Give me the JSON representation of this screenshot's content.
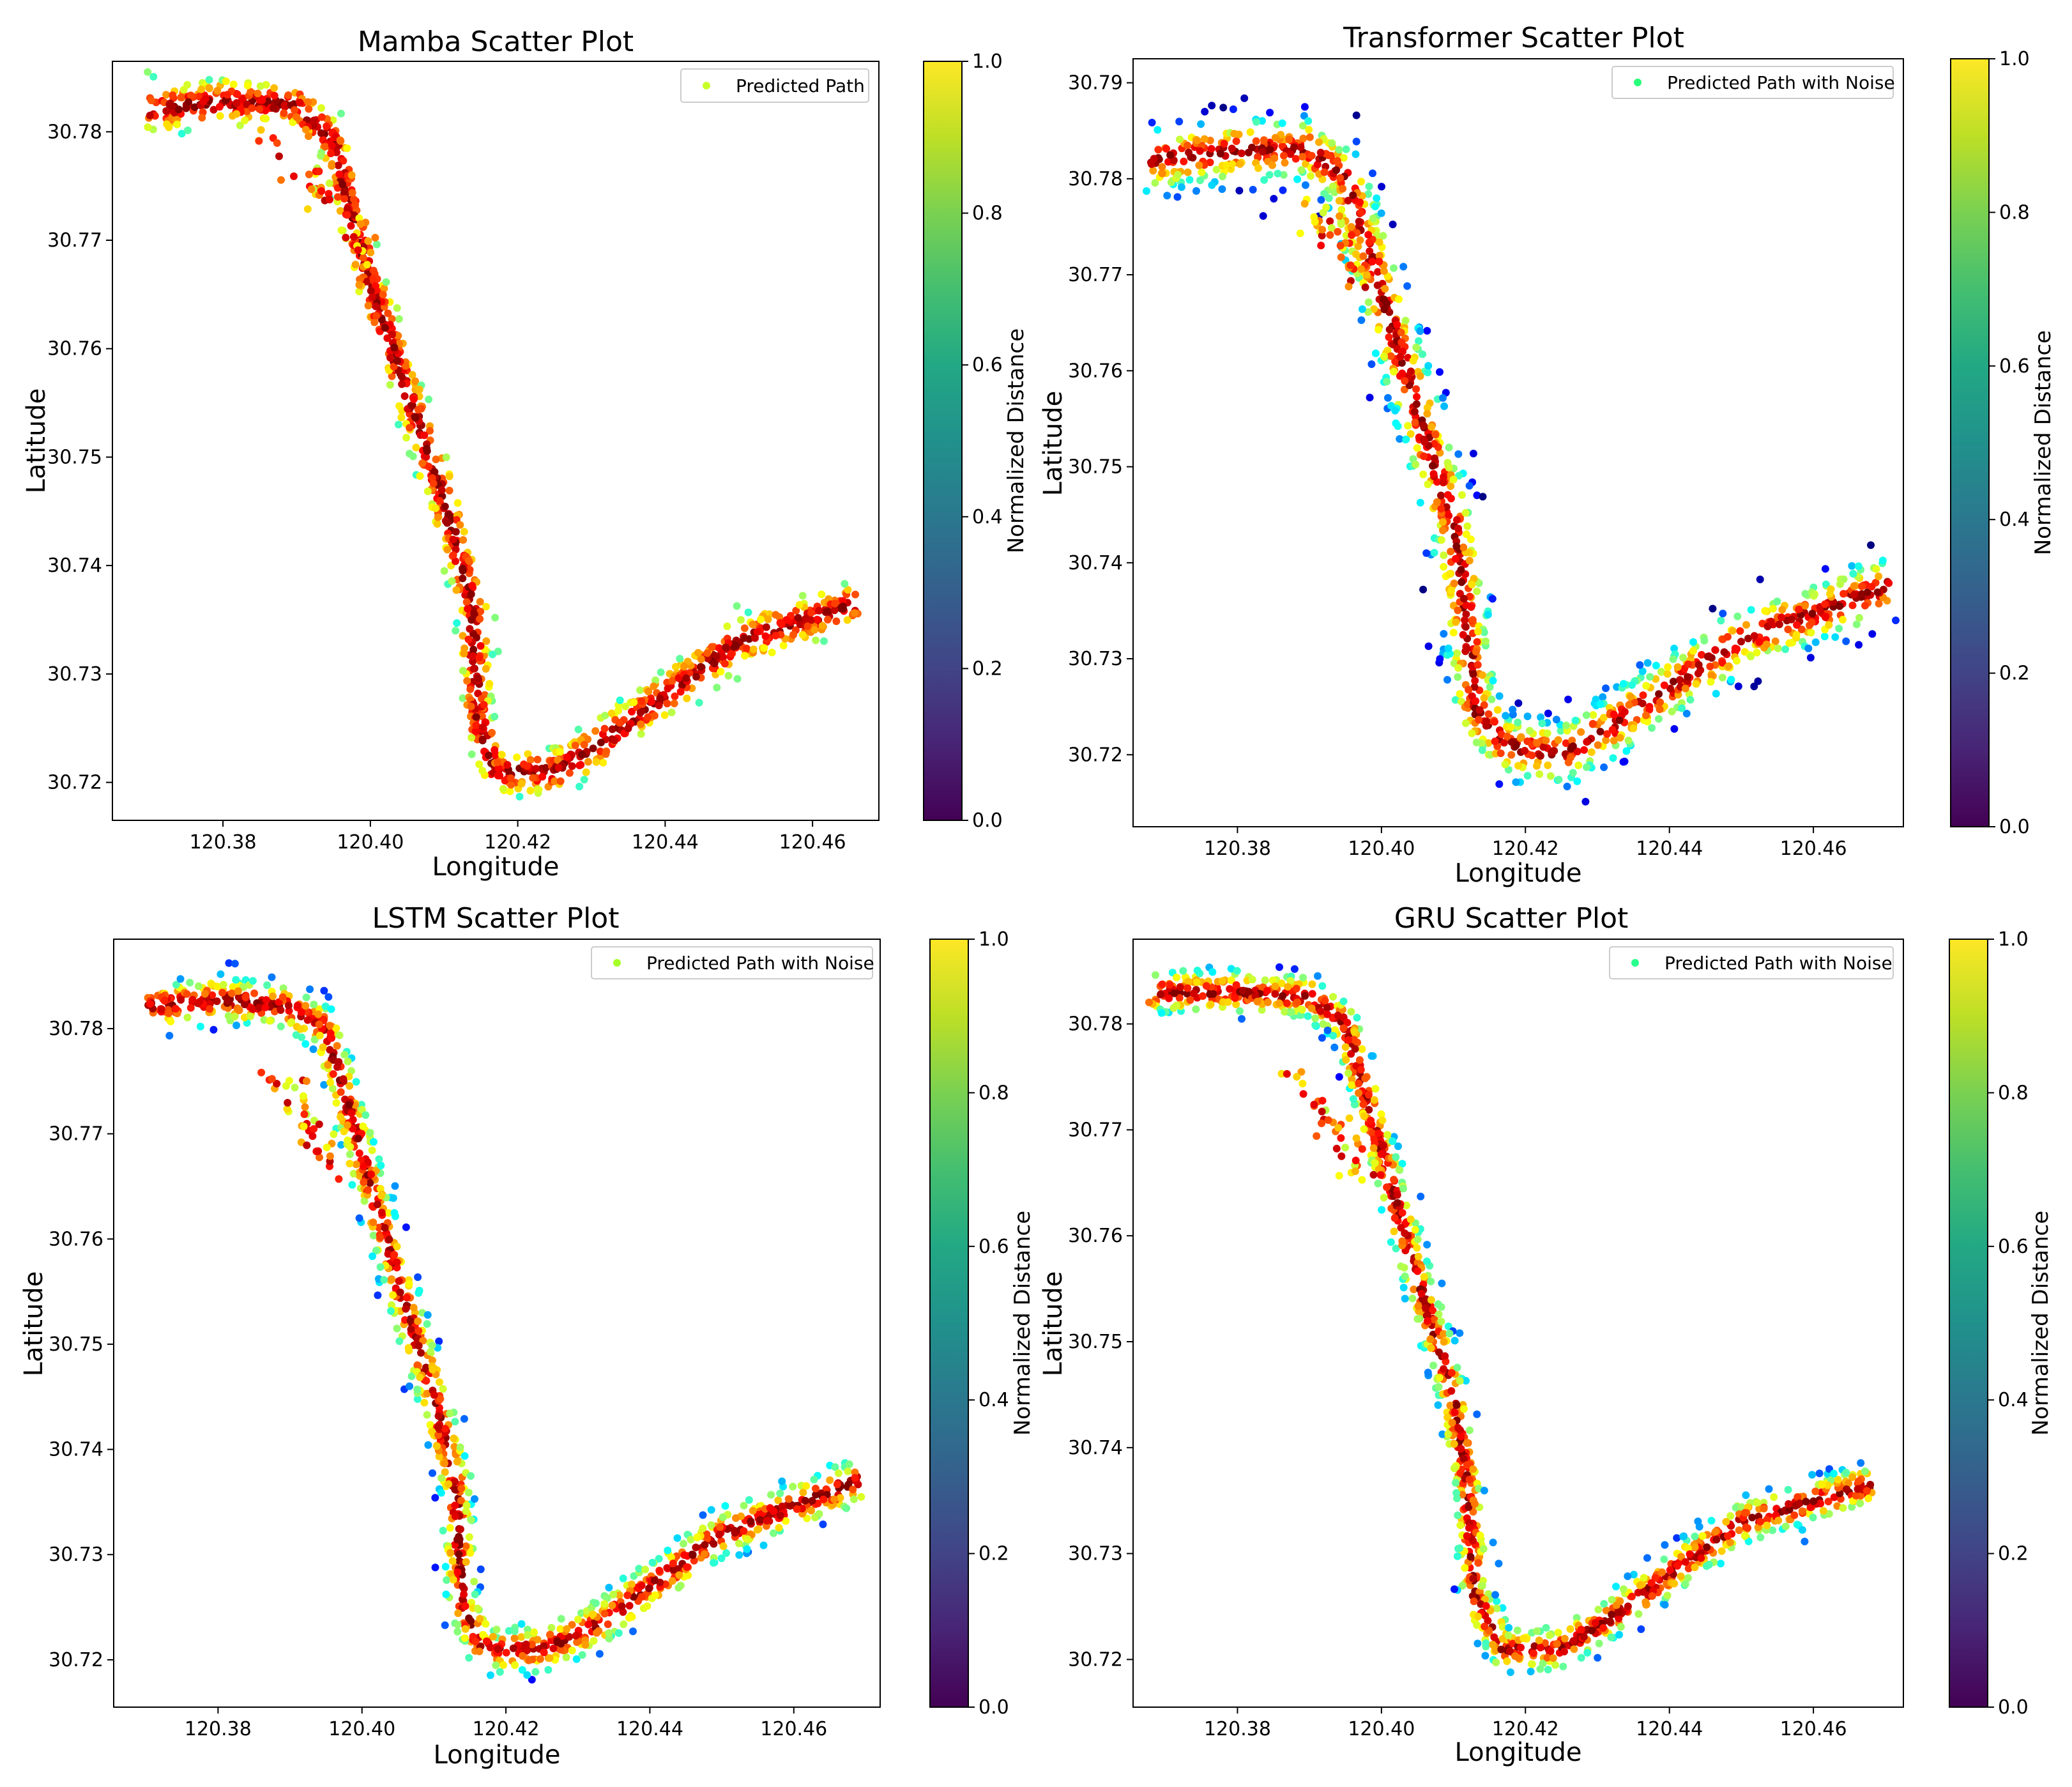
{
  "colorbar": {
    "label": "Normalized Distance",
    "ticks": [
      "0.0",
      "0.2",
      "0.4",
      "0.6",
      "0.8",
      "1.0"
    ],
    "colormap": "viridis"
  },
  "chart_data": [
    {
      "type": "scatter",
      "title": "Mamba Scatter Plot",
      "xlabel": "Longitude",
      "ylabel": "Latitude",
      "legend": "Predicted Path",
      "legend_position": "top-right",
      "legend_color": "#c8ff29",
      "xlim": [
        120.365,
        120.469
      ],
      "ylim": [
        30.7165,
        30.7865
      ],
      "xticks": [
        "120.38",
        "120.40",
        "120.42",
        "120.44",
        "120.46"
      ],
      "yticks": [
        "30.72",
        "30.73",
        "30.74",
        "30.75",
        "30.76",
        "30.77",
        "30.78"
      ],
      "band_width": 0.0022,
      "value_range": [
        0.45,
        1.0
      ],
      "seed": 11,
      "path_lon": [
        120.37,
        120.38,
        120.39,
        120.395,
        120.4,
        120.405,
        120.41,
        120.414,
        120.4145,
        120.417,
        120.425,
        120.432,
        120.44,
        120.45,
        120.466
      ],
      "path_lat": [
        30.782,
        30.7828,
        30.7825,
        30.779,
        30.766,
        30.756,
        30.746,
        30.736,
        30.726,
        30.721,
        30.721,
        30.724,
        30.728,
        30.733,
        30.7365
      ],
      "outliers_lon": [
        120.385,
        120.4
      ],
      "outliers_lat": [
        30.78,
        30.768
      ]
    },
    {
      "type": "scatter",
      "title": "Transformer Scatter Plot",
      "xlabel": "Longitude",
      "ylabel": "Latitude",
      "legend": "Predicted Path with Noise",
      "legend_position": "top-right",
      "legend_color": "#29ff7a",
      "xlim": [
        120.3655,
        120.4725
      ],
      "ylim": [
        30.7125,
        30.7925
      ],
      "xticks": [
        "120.38",
        "120.40",
        "120.42",
        "120.44",
        "120.46"
      ],
      "yticks": [
        "30.72",
        "30.73",
        "30.74",
        "30.75",
        "30.76",
        "30.77",
        "30.78",
        "30.79"
      ],
      "band_width": 0.0042,
      "value_range": [
        0.05,
        1.0
      ],
      "seed": 23,
      "path_lon": [
        120.368,
        120.38,
        120.39,
        120.395,
        120.4,
        120.405,
        120.41,
        120.412,
        120.413,
        120.417,
        120.425,
        120.432,
        120.44,
        120.45,
        120.47
      ],
      "path_lat": [
        30.782,
        30.783,
        30.783,
        30.78,
        30.768,
        30.756,
        30.744,
        30.733,
        30.725,
        30.721,
        30.72,
        30.723,
        30.727,
        30.732,
        30.7375
      ],
      "outliers_lon": [
        120.39,
        120.4
      ],
      "outliers_lat": [
        30.777,
        30.768
      ]
    },
    {
      "type": "scatter",
      "title": "LSTM Scatter Plot",
      "xlabel": "Longitude",
      "ylabel": "Latitude",
      "legend": "Predicted Path with Noise",
      "legend_position": "top-right",
      "legend_color": "#a6ff29",
      "xlim": [
        120.3655,
        120.472
      ],
      "ylim": [
        30.7155,
        30.7885
      ],
      "xticks": [
        "120.38",
        "120.40",
        "120.42",
        "120.44",
        "120.46"
      ],
      "yticks": [
        "30.72",
        "30.73",
        "30.74",
        "30.75",
        "30.76",
        "30.77",
        "30.78"
      ],
      "band_width": 0.0026,
      "value_range": [
        0.2,
        1.0
      ],
      "seed": 37,
      "path_lon": [
        120.37,
        120.38,
        120.39,
        120.395,
        120.4,
        120.405,
        120.41,
        120.413,
        120.414,
        120.417,
        120.425,
        120.432,
        120.44,
        120.45,
        120.469
      ],
      "path_lat": [
        30.782,
        30.7828,
        30.782,
        30.78,
        30.768,
        30.756,
        30.745,
        30.737,
        30.725,
        30.721,
        30.721,
        30.723,
        30.727,
        30.732,
        30.737
      ],
      "outliers_lon": [
        120.388,
        120.398
      ],
      "outliers_lat": [
        30.776,
        30.766
      ]
    },
    {
      "type": "scatter",
      "title": "GRU Scatter Plot",
      "xlabel": "Longitude",
      "ylabel": "Latitude",
      "legend": "Predicted Path with Noise",
      "legend_position": "top-right",
      "legend_color": "#29ff8c",
      "xlim": [
        120.3655,
        120.4725
      ],
      "ylim": [
        30.7155,
        30.788
      ],
      "xticks": [
        "120.38",
        "120.40",
        "120.42",
        "120.44",
        "120.46"
      ],
      "yticks": [
        "30.72",
        "30.73",
        "30.74",
        "30.75",
        "30.76",
        "30.77",
        "30.78"
      ],
      "band_width": 0.0024,
      "value_range": [
        0.2,
        1.0
      ],
      "seed": 53,
      "path_lon": [
        120.368,
        120.38,
        120.39,
        120.395,
        120.4,
        120.405,
        120.41,
        120.412,
        120.413,
        120.417,
        120.425,
        120.432,
        120.44,
        120.45,
        120.468
      ],
      "path_lat": [
        30.783,
        30.783,
        30.7825,
        30.78,
        30.768,
        30.756,
        30.745,
        30.736,
        30.726,
        30.721,
        30.721,
        30.724,
        30.728,
        30.733,
        30.7365
      ],
      "outliers_lon": [
        120.388,
        120.398
      ],
      "outliers_lat": [
        30.776,
        30.765
      ]
    }
  ]
}
